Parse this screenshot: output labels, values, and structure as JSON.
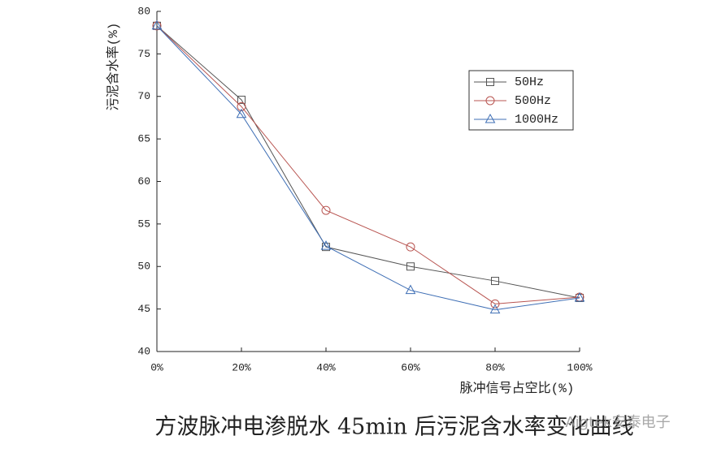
{
  "chart_data": {
    "type": "line",
    "x_label": "脉冲信号占空比(%)",
    "y_label": "污泥含水率(%)",
    "caption": "方波脉冲电渗脱水 45min 后污泥含水率变化曲线",
    "watermark": "Aigtek安泰电子",
    "x": [
      0,
      20,
      40,
      60,
      80,
      100
    ],
    "series": [
      {
        "name": "50Hz",
        "color": "#555555",
        "marker": "square",
        "values": [
          78.3,
          69.6,
          52.3,
          50.0,
          48.3,
          46.3
        ]
      },
      {
        "name": "500Hz",
        "color": "#b85450",
        "marker": "circle",
        "values": [
          78.3,
          68.8,
          56.6,
          52.3,
          45.6,
          46.4
        ]
      },
      {
        "name": "1000Hz",
        "color": "#3f6fb5",
        "marker": "triangle",
        "values": [
          78.3,
          67.9,
          52.4,
          47.2,
          44.9,
          46.3
        ]
      }
    ],
    "xlim": [
      0,
      100
    ],
    "xticks": [
      {
        "value": 0,
        "label": "0%"
      },
      {
        "value": 20,
        "label": "20%"
      },
      {
        "value": 40,
        "label": "40%"
      },
      {
        "value": 60,
        "label": "60%"
      },
      {
        "value": 80,
        "label": "80%"
      },
      {
        "value": 100,
        "label": "100%"
      }
    ],
    "ylim": [
      40,
      80
    ],
    "yticks": [
      40,
      45,
      50,
      55,
      60,
      65,
      70,
      75,
      80
    ],
    "legend": "upper right"
  }
}
